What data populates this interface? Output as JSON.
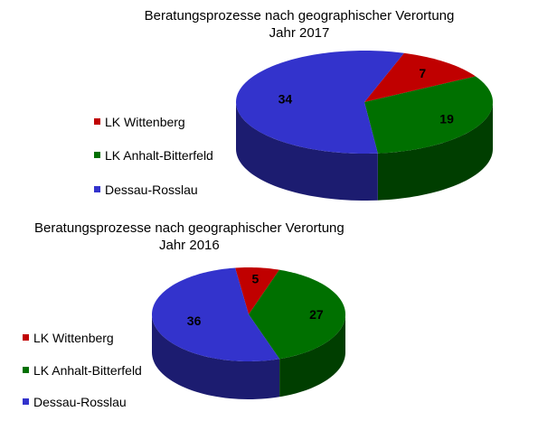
{
  "chart_data": [
    {
      "type": "pie",
      "title": "Beratungsprozesse  nach geographischer Verortung",
      "subtitle": "Jahr 2017",
      "legend_position": "left",
      "slices": [
        {
          "label": "LK Wittenberg",
          "value": 7,
          "color": "#C00000"
        },
        {
          "label": "LK Anhalt-Bitterfeld",
          "value": 19,
          "color": "#007000"
        },
        {
          "label": "Dessau-Rosslau",
          "value": 34,
          "color": "#3333CC"
        }
      ]
    },
    {
      "type": "pie",
      "title": "Beratungsprozesse nach geographischer Verortung",
      "subtitle": "Jahr 2016",
      "legend_position": "left",
      "slices": [
        {
          "label": "LK Wittenberg",
          "value": 5,
          "color": "#C00000"
        },
        {
          "label": "LK Anhalt-Bitterfeld",
          "value": 27,
          "color": "#007000"
        },
        {
          "label": "Dessau-Rosslau",
          "value": 36,
          "color": "#3333CC"
        }
      ]
    }
  ]
}
